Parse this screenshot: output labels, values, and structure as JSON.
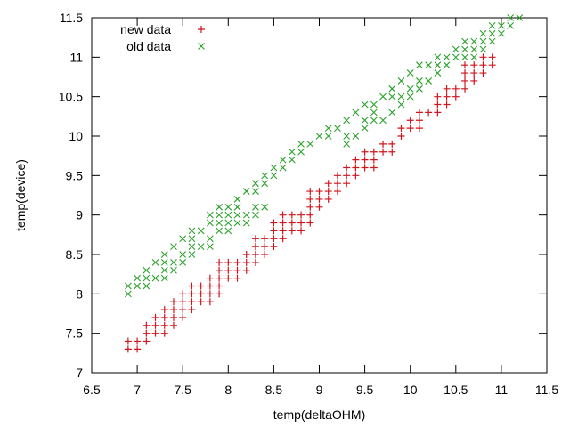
{
  "chart_data": {
    "type": "scatter",
    "xlabel": "temp(deltaOHM)",
    "ylabel": "temp(device)",
    "xlim": [
      6.5,
      11.5
    ],
    "ylim": [
      7,
      11.5
    ],
    "xticks": [
      "6.5",
      "7",
      "7.5",
      "8",
      "8.5",
      "9",
      "9.5",
      "10",
      "10.5",
      "11",
      "11.5"
    ],
    "yticks": [
      "7",
      "7.5",
      "8",
      "8.5",
      "9",
      "9.5",
      "10",
      "10.5",
      "11",
      "11.5"
    ],
    "grid": false,
    "legend_position": "top-left",
    "series": [
      {
        "name": "new data",
        "marker": "plus",
        "color": "#d0151c",
        "points": [
          [
            6.9,
            7.3
          ],
          [
            6.9,
            7.4
          ],
          [
            7.0,
            7.3
          ],
          [
            7.0,
            7.4
          ],
          [
            7.1,
            7.4
          ],
          [
            7.1,
            7.5
          ],
          [
            7.1,
            7.6
          ],
          [
            7.2,
            7.5
          ],
          [
            7.2,
            7.6
          ],
          [
            7.2,
            7.7
          ],
          [
            7.3,
            7.5
          ],
          [
            7.3,
            7.6
          ],
          [
            7.3,
            7.7
          ],
          [
            7.3,
            7.8
          ],
          [
            7.4,
            7.6
          ],
          [
            7.4,
            7.7
          ],
          [
            7.4,
            7.8
          ],
          [
            7.4,
            7.9
          ],
          [
            7.5,
            7.7
          ],
          [
            7.5,
            7.8
          ],
          [
            7.5,
            7.9
          ],
          [
            7.5,
            8.0
          ],
          [
            7.6,
            7.8
          ],
          [
            7.6,
            7.9
          ],
          [
            7.6,
            8.0
          ],
          [
            7.6,
            8.1
          ],
          [
            7.7,
            7.9
          ],
          [
            7.7,
            8.0
          ],
          [
            7.7,
            8.1
          ],
          [
            7.8,
            7.9
          ],
          [
            7.8,
            8.0
          ],
          [
            7.8,
            8.1
          ],
          [
            7.8,
            8.2
          ],
          [
            7.9,
            8.0
          ],
          [
            7.9,
            8.1
          ],
          [
            7.9,
            8.2
          ],
          [
            7.9,
            8.3
          ],
          [
            7.9,
            8.4
          ],
          [
            8.0,
            8.2
          ],
          [
            8.0,
            8.3
          ],
          [
            8.0,
            8.4
          ],
          [
            8.1,
            8.2
          ],
          [
            8.1,
            8.3
          ],
          [
            8.1,
            8.4
          ],
          [
            8.2,
            8.3
          ],
          [
            8.2,
            8.4
          ],
          [
            8.2,
            8.5
          ],
          [
            8.3,
            8.4
          ],
          [
            8.3,
            8.5
          ],
          [
            8.3,
            8.6
          ],
          [
            8.3,
            8.7
          ],
          [
            8.4,
            8.5
          ],
          [
            8.4,
            8.6
          ],
          [
            8.4,
            8.7
          ],
          [
            8.5,
            8.6
          ],
          [
            8.5,
            8.7
          ],
          [
            8.5,
            8.8
          ],
          [
            8.5,
            8.9
          ],
          [
            8.6,
            8.7
          ],
          [
            8.6,
            8.8
          ],
          [
            8.6,
            8.9
          ],
          [
            8.6,
            9.0
          ],
          [
            8.7,
            8.8
          ],
          [
            8.7,
            8.9
          ],
          [
            8.7,
            9.0
          ],
          [
            8.8,
            8.8
          ],
          [
            8.8,
            8.9
          ],
          [
            8.8,
            9.0
          ],
          [
            8.9,
            8.9
          ],
          [
            8.9,
            9.0
          ],
          [
            8.9,
            9.1
          ],
          [
            8.9,
            9.2
          ],
          [
            8.9,
            9.3
          ],
          [
            9.0,
            9.1
          ],
          [
            9.0,
            9.2
          ],
          [
            9.0,
            9.3
          ],
          [
            9.1,
            9.2
          ],
          [
            9.1,
            9.3
          ],
          [
            9.1,
            9.4
          ],
          [
            9.2,
            9.3
          ],
          [
            9.2,
            9.4
          ],
          [
            9.2,
            9.5
          ],
          [
            9.3,
            9.4
          ],
          [
            9.3,
            9.5
          ],
          [
            9.3,
            9.6
          ],
          [
            9.4,
            9.5
          ],
          [
            9.4,
            9.6
          ],
          [
            9.4,
            9.7
          ],
          [
            9.5,
            9.6
          ],
          [
            9.5,
            9.7
          ],
          [
            9.5,
            9.8
          ],
          [
            9.6,
            9.6
          ],
          [
            9.6,
            9.7
          ],
          [
            9.6,
            9.8
          ],
          [
            9.7,
            9.8
          ],
          [
            9.7,
            9.9
          ],
          [
            9.8,
            9.8
          ],
          [
            9.8,
            9.9
          ],
          [
            9.9,
            10.0
          ],
          [
            9.9,
            10.1
          ],
          [
            10.0,
            10.1
          ],
          [
            10.0,
            10.2
          ],
          [
            10.1,
            10.1
          ],
          [
            10.1,
            10.2
          ],
          [
            10.1,
            10.3
          ],
          [
            10.2,
            10.3
          ],
          [
            10.3,
            10.3
          ],
          [
            10.3,
            10.4
          ],
          [
            10.3,
            10.5
          ],
          [
            10.4,
            10.4
          ],
          [
            10.4,
            10.5
          ],
          [
            10.4,
            10.6
          ],
          [
            10.5,
            10.5
          ],
          [
            10.5,
            10.6
          ],
          [
            10.6,
            10.6
          ],
          [
            10.6,
            10.7
          ],
          [
            10.6,
            10.8
          ],
          [
            10.6,
            10.9
          ],
          [
            10.7,
            10.7
          ],
          [
            10.7,
            10.8
          ],
          [
            10.7,
            10.9
          ],
          [
            10.8,
            10.8
          ],
          [
            10.8,
            10.9
          ],
          [
            10.8,
            11.0
          ],
          [
            10.9,
            10.9
          ],
          [
            10.9,
            11.0
          ]
        ]
      },
      {
        "name": "old data",
        "marker": "cross",
        "color": "#2aa22a",
        "points": [
          [
            6.9,
            8.0
          ],
          [
            6.9,
            8.1
          ],
          [
            7.0,
            8.1
          ],
          [
            7.0,
            8.2
          ],
          [
            7.1,
            8.1
          ],
          [
            7.1,
            8.2
          ],
          [
            7.1,
            8.3
          ],
          [
            7.2,
            8.2
          ],
          [
            7.2,
            8.4
          ],
          [
            7.3,
            8.2
          ],
          [
            7.3,
            8.3
          ],
          [
            7.3,
            8.4
          ],
          [
            7.3,
            8.5
          ],
          [
            7.4,
            8.3
          ],
          [
            7.4,
            8.4
          ],
          [
            7.4,
            8.6
          ],
          [
            7.5,
            8.4
          ],
          [
            7.5,
            8.5
          ],
          [
            7.5,
            8.7
          ],
          [
            7.6,
            8.5
          ],
          [
            7.6,
            8.6
          ],
          [
            7.6,
            8.7
          ],
          [
            7.6,
            8.8
          ],
          [
            7.7,
            8.6
          ],
          [
            7.7,
            8.8
          ],
          [
            7.8,
            8.6
          ],
          [
            7.8,
            8.7
          ],
          [
            7.8,
            8.9
          ],
          [
            7.8,
            9.0
          ],
          [
            7.9,
            8.8
          ],
          [
            7.9,
            8.9
          ],
          [
            7.9,
            9.0
          ],
          [
            7.9,
            9.1
          ],
          [
            8.0,
            8.8
          ],
          [
            8.0,
            8.9
          ],
          [
            8.0,
            9.0
          ],
          [
            8.0,
            9.1
          ],
          [
            8.1,
            8.9
          ],
          [
            8.1,
            9.0
          ],
          [
            8.1,
            9.1
          ],
          [
            8.1,
            9.2
          ],
          [
            8.2,
            8.9
          ],
          [
            8.2,
            9.0
          ],
          [
            8.2,
            9.3
          ],
          [
            8.3,
            9.0
          ],
          [
            8.3,
            9.1
          ],
          [
            8.3,
            9.3
          ],
          [
            8.3,
            9.4
          ],
          [
            8.4,
            9.1
          ],
          [
            8.4,
            9.4
          ],
          [
            8.4,
            9.5
          ],
          [
            8.5,
            9.5
          ],
          [
            8.5,
            9.6
          ],
          [
            8.6,
            9.6
          ],
          [
            8.6,
            9.7
          ],
          [
            8.7,
            9.7
          ],
          [
            8.7,
            9.8
          ],
          [
            8.8,
            9.8
          ],
          [
            8.8,
            9.9
          ],
          [
            8.9,
            9.9
          ],
          [
            9.0,
            10.0
          ],
          [
            9.1,
            10.0
          ],
          [
            9.1,
            10.1
          ],
          [
            9.2,
            10.1
          ],
          [
            9.3,
            9.9
          ],
          [
            9.3,
            10.0
          ],
          [
            9.3,
            10.2
          ],
          [
            9.4,
            10.0
          ],
          [
            9.4,
            10.3
          ],
          [
            9.5,
            10.1
          ],
          [
            9.5,
            10.2
          ],
          [
            9.5,
            10.4
          ],
          [
            9.6,
            10.2
          ],
          [
            9.6,
            10.3
          ],
          [
            9.6,
            10.4
          ],
          [
            9.7,
            10.2
          ],
          [
            9.7,
            10.5
          ],
          [
            9.8,
            10.3
          ],
          [
            9.8,
            10.5
          ],
          [
            9.8,
            10.6
          ],
          [
            9.9,
            10.4
          ],
          [
            9.9,
            10.5
          ],
          [
            9.9,
            10.7
          ],
          [
            10.0,
            10.5
          ],
          [
            10.0,
            10.6
          ],
          [
            10.0,
            10.8
          ],
          [
            10.1,
            10.6
          ],
          [
            10.1,
            10.7
          ],
          [
            10.1,
            10.9
          ],
          [
            10.2,
            10.7
          ],
          [
            10.2,
            10.9
          ],
          [
            10.3,
            10.8
          ],
          [
            10.3,
            10.9
          ],
          [
            10.3,
            11.0
          ],
          [
            10.4,
            10.9
          ],
          [
            10.4,
            11.0
          ],
          [
            10.5,
            11.0
          ],
          [
            10.5,
            11.1
          ],
          [
            10.6,
            11.0
          ],
          [
            10.6,
            11.1
          ],
          [
            10.6,
            11.2
          ],
          [
            10.7,
            11.0
          ],
          [
            10.7,
            11.1
          ],
          [
            10.7,
            11.2
          ],
          [
            10.8,
            11.1
          ],
          [
            10.8,
            11.2
          ],
          [
            10.8,
            11.3
          ],
          [
            10.9,
            11.2
          ],
          [
            10.9,
            11.3
          ],
          [
            10.9,
            11.4
          ],
          [
            11.0,
            11.3
          ],
          [
            11.0,
            11.4
          ],
          [
            11.1,
            11.4
          ],
          [
            11.1,
            11.5
          ],
          [
            11.2,
            11.5
          ]
        ]
      }
    ]
  }
}
